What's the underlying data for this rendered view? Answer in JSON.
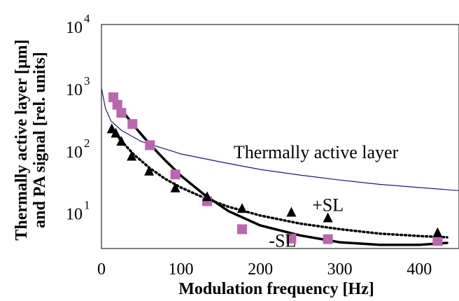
{
  "chart_data": {
    "type": "scatter",
    "xlabel": "Modulation frequency [Hz]",
    "ylabel_lines": [
      "Thermally active layer [µm]",
      "and PA signal [rel. units]"
    ],
    "xlim": [
      0,
      450
    ],
    "ylim": [
      0.4,
      4
    ],
    "y_scale": "log-style labels",
    "grid": false,
    "x_ticks": [
      {
        "value": 0,
        "label": "0"
      },
      {
        "value": 100,
        "label": "100"
      },
      {
        "value": 200,
        "label": "200"
      },
      {
        "value": 300,
        "label": "300"
      },
      {
        "value": 400,
        "label": "400"
      }
    ],
    "y_ticks": [
      {
        "value": 1,
        "base": "10",
        "exp": "1"
      },
      {
        "value": 2,
        "base": "10",
        "exp": "2"
      },
      {
        "value": 3,
        "base": "10",
        "exp": "3"
      },
      {
        "value": 4,
        "base": "10",
        "exp": "4"
      }
    ],
    "series": [
      {
        "name": "-SL",
        "marker": "square",
        "color": "#b968ad",
        "points": [
          [
            15,
            2.83
          ],
          [
            20,
            2.71
          ],
          [
            25,
            2.58
          ],
          [
            39,
            2.4
          ],
          [
            61,
            2.06
          ],
          [
            93,
            1.59
          ],
          [
            133,
            1.16
          ],
          [
            177,
            0.71
          ],
          [
            239,
            0.56
          ],
          [
            285,
            0.55
          ],
          [
            423,
            0.52
          ]
        ]
      },
      {
        "name": "+SL",
        "marker": "triangle",
        "color": "#000000",
        "points": [
          [
            13,
            2.32
          ],
          [
            18,
            2.25
          ],
          [
            25,
            2.12
          ],
          [
            38,
            1.88
          ],
          [
            60,
            1.64
          ],
          [
            93,
            1.37
          ],
          [
            133,
            1.23
          ],
          [
            177,
            1.04
          ],
          [
            239,
            0.98
          ],
          [
            285,
            0.89
          ],
          [
            423,
            0.65
          ]
        ]
      }
    ],
    "curves": [
      {
        "name": "Thermally active layer",
        "style": "thin",
        "color": "#1a1a8a",
        "points": [
          [
            0,
            2.98
          ],
          [
            5,
            2.65
          ],
          [
            12,
            2.45
          ],
          [
            25,
            2.3
          ],
          [
            50,
            2.12
          ],
          [
            100,
            1.92
          ],
          [
            150,
            1.79
          ],
          [
            200,
            1.67
          ],
          [
            250,
            1.58
          ],
          [
            300,
            1.5
          ],
          [
            350,
            1.43
          ],
          [
            400,
            1.38
          ],
          [
            450,
            1.33
          ]
        ]
      },
      {
        "name": "-SL fit",
        "style": "solid",
        "color": "#000000",
        "points": [
          [
            12,
            2.87
          ],
          [
            20,
            2.72
          ],
          [
            30,
            2.55
          ],
          [
            45,
            2.31
          ],
          [
            60,
            2.09
          ],
          [
            80,
            1.82
          ],
          [
            100,
            1.57
          ],
          [
            130,
            1.26
          ],
          [
            160,
            1.0
          ],
          [
            200,
            0.77
          ],
          [
            250,
            0.61
          ],
          [
            300,
            0.5
          ],
          [
            350,
            0.46
          ],
          [
            400,
            0.46
          ],
          [
            435,
            0.49
          ]
        ]
      },
      {
        "name": "+SL fit",
        "style": "dotted",
        "color": "#000000",
        "points": [
          [
            12,
            2.34
          ],
          [
            25,
            2.13
          ],
          [
            40,
            1.92
          ],
          [
            60,
            1.7
          ],
          [
            80,
            1.52
          ],
          [
            100,
            1.38
          ],
          [
            130,
            1.21
          ],
          [
            160,
            1.07
          ],
          [
            200,
            0.93
          ],
          [
            250,
            0.8
          ],
          [
            300,
            0.71
          ],
          [
            350,
            0.64
          ],
          [
            400,
            0.6
          ],
          [
            435,
            0.58
          ]
        ]
      }
    ],
    "annotations": [
      {
        "text": "Thermally active layer",
        "x": 270,
        "y": 1.85
      },
      {
        "text": "+SL",
        "x": 285,
        "y": 1.0
      },
      {
        "text": "-SL",
        "x": 228,
        "y": 0.43
      }
    ]
  }
}
